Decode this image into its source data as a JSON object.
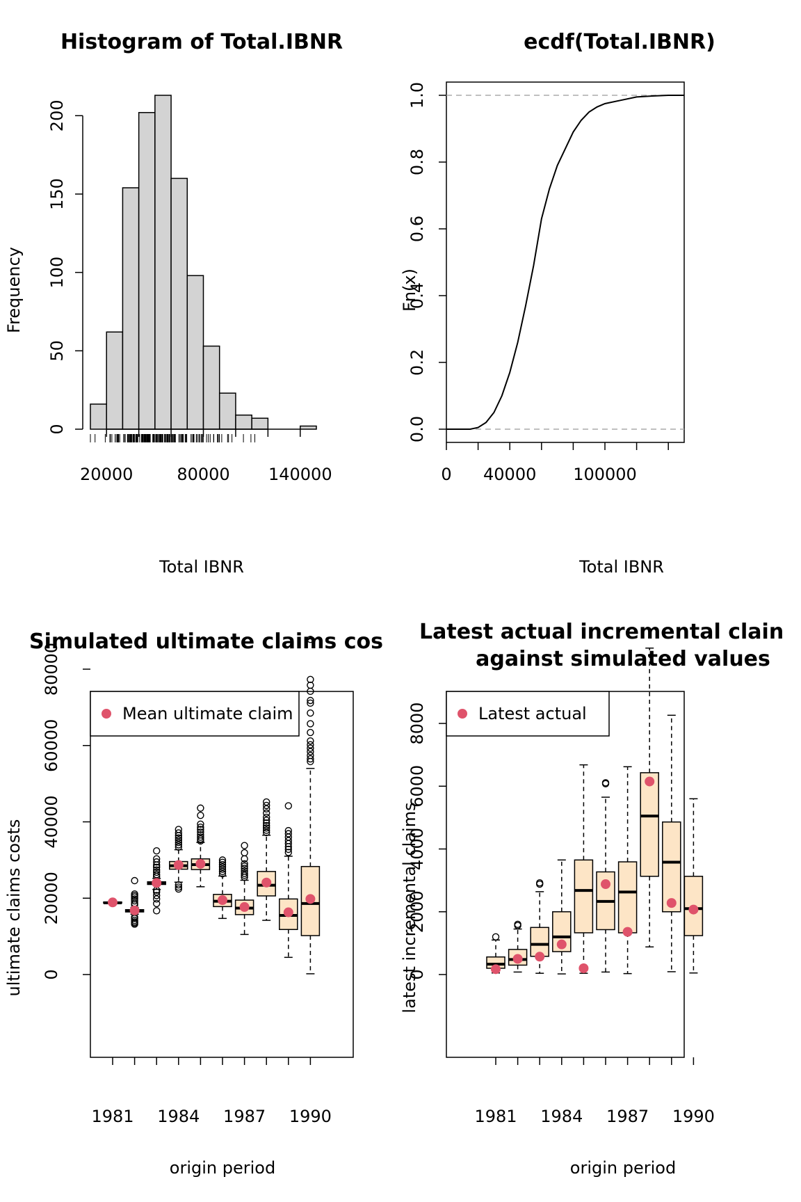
{
  "chart_data": [
    {
      "type": "bar",
      "title": "Histogram of Total.IBNR",
      "xlabel": "Total IBNR",
      "ylabel": "Frequency",
      "bin_edges": [
        10000,
        20000,
        30000,
        40000,
        50000,
        60000,
        70000,
        80000,
        90000,
        100000,
        110000,
        120000,
        130000,
        140000,
        150000
      ],
      "values": [
        16,
        62,
        154,
        202,
        213,
        160,
        98,
        53,
        23,
        9,
        7,
        0,
        0,
        2
      ],
      "xlim": [
        10000,
        150000
      ],
      "ylim": [
        0,
        213
      ],
      "x_ticks": [
        20000,
        80000,
        140000
      ],
      "y_ticks": [
        0,
        50,
        100,
        150,
        200
      ],
      "rug": true,
      "bar_color": "#d3d3d3"
    },
    {
      "type": "line",
      "title": "ecdf(Total.IBNR)",
      "xlabel": "Total IBNR",
      "ylabel": "Fn(x)",
      "x": [
        0,
        10000,
        15000,
        20000,
        25000,
        30000,
        35000,
        40000,
        45000,
        50000,
        55000,
        60000,
        65000,
        70000,
        75000,
        80000,
        85000,
        90000,
        95000,
        100000,
        110000,
        120000,
        130000,
        140000,
        150000
      ],
      "y": [
        0,
        0,
        0,
        0.005,
        0.02,
        0.05,
        0.1,
        0.17,
        0.26,
        0.37,
        0.49,
        0.63,
        0.72,
        0.79,
        0.84,
        0.89,
        0.925,
        0.95,
        0.965,
        0.975,
        0.985,
        0.995,
        0.998,
        1,
        1
      ],
      "xlim": [
        0,
        150000
      ],
      "ylim": [
        -0.04,
        1.04
      ],
      "x_ticks": [
        0,
        40000,
        100000
      ],
      "y_ticks": [
        0,
        0.2,
        0.4,
        0.6,
        0.8,
        1.0
      ],
      "y_tick_labels": [
        "0.0",
        "0.2",
        "0.4",
        "0.6",
        "0.8",
        "1.0"
      ],
      "reference_lines": [
        0,
        1
      ]
    },
    {
      "type": "box",
      "title": "Simulated ultimate claims cos",
      "xlabel": "origin period",
      "ylabel": "ultimate claims costs",
      "categories": [
        1981,
        1982,
        1983,
        1984,
        1985,
        1986,
        1987,
        1988,
        1989,
        1990
      ],
      "x_tick_labels": [
        "1981",
        "1984",
        "1987",
        "1990"
      ],
      "boxes": [
        {
          "min": 18400,
          "q1": 18700,
          "median": 18800,
          "q3": 19000,
          "max": 19200,
          "outliers": []
        },
        {
          "min": 15800,
          "q1": 16400,
          "median": 16700,
          "q3": 17000,
          "max": 17600,
          "outliers": [
            13200,
            13500,
            13800,
            14200,
            14700,
            15100,
            18300,
            18700,
            19300,
            19800,
            20300,
            20700,
            21100,
            24600
          ]
        },
        {
          "min": 22300,
          "q1": 23600,
          "median": 24000,
          "q3": 24300,
          "max": 25200,
          "outliers": [
            16700,
            18600,
            19800,
            20700,
            21600,
            22100,
            25700,
            26200,
            26800,
            27400,
            28100,
            28700,
            29500,
            30300,
            32400
          ]
        },
        {
          "min": 24200,
          "q1": 27600,
          "median": 28500,
          "q3": 29600,
          "max": 32700,
          "outliers": [
            22400,
            22900,
            23500,
            33400,
            34000,
            34600,
            35200,
            35800,
            36400,
            37100,
            38000
          ]
        },
        {
          "min": 23000,
          "q1": 27500,
          "median": 28800,
          "q3": 30300,
          "max": 34600,
          "outliers": [
            35000,
            35500,
            36000,
            36600,
            37300,
            38000,
            38600,
            39400,
            41700,
            43600
          ]
        },
        {
          "min": 14700,
          "q1": 17800,
          "median": 19200,
          "q3": 21000,
          "max": 25800,
          "outliers": [
            26400,
            27000,
            27600,
            28200,
            28800,
            29400,
            30000
          ]
        },
        {
          "min": 10500,
          "q1": 15700,
          "median": 17400,
          "q3": 19500,
          "max": 24700,
          "outliers": [
            25500,
            26000,
            26500,
            27100,
            27800,
            28400,
            29000,
            30300,
            31900,
            33800
          ]
        },
        {
          "min": 14200,
          "q1": 20600,
          "median": 23400,
          "q3": 27000,
          "max": 36500,
          "outliers": [
            37200,
            37800,
            38400,
            39000,
            39700,
            40400,
            41200,
            42300,
            43400,
            44300,
            45200
          ]
        },
        {
          "min": 4500,
          "q1": 11800,
          "median": 15500,
          "q3": 19800,
          "max": 31000,
          "outliers": [
            32000,
            32800,
            33500,
            34300,
            35100,
            36000,
            36900,
            37700,
            44200
          ]
        },
        {
          "min": 200,
          "q1": 10200,
          "median": 18600,
          "q3": 28300,
          "max": 54000,
          "outliers": [
            55800,
            56500,
            57400,
            58400,
            59300,
            60200,
            61200,
            63400,
            65700,
            68500,
            71100,
            71800,
            74200,
            75800,
            77300,
            87800
          ]
        }
      ],
      "means": [
        18900,
        16800,
        24000,
        28700,
        29000,
        19500,
        17700,
        24100,
        16300,
        19800
      ],
      "ylim": [
        -3000,
        92000
      ],
      "y_ticks": [
        0,
        20000,
        40000,
        60000,
        80000
      ],
      "legend": {
        "label": "Mean ultimate claim",
        "position": "top-left"
      },
      "box_color": "#fde5c6",
      "mean_color": "#df536b"
    },
    {
      "type": "box",
      "title": "Latest actual incremental clain",
      "subtitle": "against simulated values",
      "xlabel": "origin period",
      "ylabel": "latest incremental claims",
      "categories": [
        1981,
        1982,
        1983,
        1984,
        1985,
        1986,
        1987,
        1988,
        1989,
        1990
      ],
      "x_tick_labels": [
        "1981",
        "1984",
        "1987",
        "1990"
      ],
      "boxes": [
        {
          "min": 50,
          "q1": 200,
          "median": 330,
          "q3": 560,
          "max": 1100,
          "outliers": [
            1200
          ]
        },
        {
          "min": 80,
          "q1": 300,
          "median": 480,
          "q3": 800,
          "max": 1450,
          "outliers": [
            1560,
            1600
          ]
        },
        {
          "min": 40,
          "q1": 580,
          "median": 960,
          "q3": 1500,
          "max": 2640,
          "outliers": [
            2880,
            2920
          ]
        },
        {
          "min": 20,
          "q1": 730,
          "median": 1200,
          "q3": 2000,
          "max": 3650,
          "outliers": []
        },
        {
          "min": 40,
          "q1": 1330,
          "median": 2680,
          "q3": 3650,
          "max": 6680,
          "outliers": []
        },
        {
          "min": 80,
          "q1": 1430,
          "median": 2330,
          "q3": 3270,
          "max": 5650,
          "outliers": [
            6080,
            6110
          ]
        },
        {
          "min": 30,
          "q1": 1330,
          "median": 2630,
          "q3": 3590,
          "max": 6620,
          "outliers": []
        },
        {
          "min": 880,
          "q1": 3130,
          "median": 5050,
          "q3": 6430,
          "max": 10400,
          "outliers": []
        },
        {
          "min": 90,
          "q1": 2000,
          "median": 3580,
          "q3": 4860,
          "max": 8260,
          "outliers": []
        },
        {
          "min": 50,
          "q1": 1240,
          "median": 2100,
          "q3": 3130,
          "max": 5600,
          "outliers": []
        }
      ],
      "latest_actual": [
        170,
        500,
        570,
        960,
        200,
        2880,
        1360,
        6150,
        2280,
        2070
      ],
      "ylim": [
        -400,
        10800
      ],
      "y_ticks": [
        0,
        2000,
        4000,
        6000,
        8000
      ],
      "legend": {
        "label": "Latest actual",
        "position": "top-left"
      },
      "box_color": "#fde5c6",
      "mean_color": "#df536b"
    }
  ]
}
